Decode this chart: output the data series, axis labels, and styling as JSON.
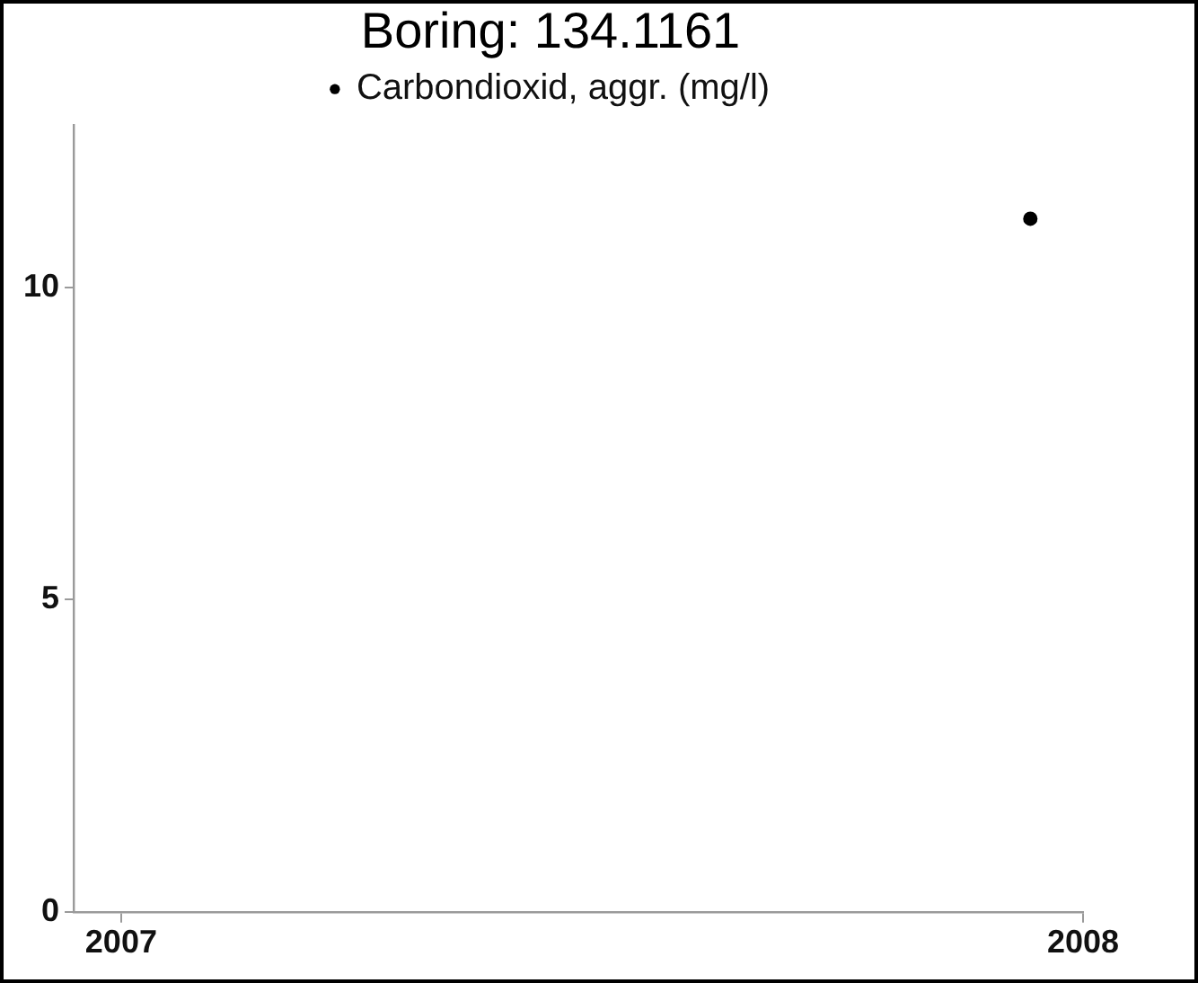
{
  "chart_data": {
    "type": "scatter",
    "title": "Boring: 134.1161",
    "x": [
      "2007-12-12"
    ],
    "series": [
      {
        "name": "Carbondioxid, aggr. (mg/l)",
        "color": "#000000",
        "values": [
          11.1
        ]
      }
    ],
    "xlim": [
      "2006-12-14",
      "2008-01-01"
    ],
    "xticks": [
      "2007",
      "2008"
    ],
    "ylim": [
      0,
      12.6
    ],
    "yticks": [
      0,
      5,
      10
    ],
    "legend": "top",
    "marker": "circle"
  }
}
